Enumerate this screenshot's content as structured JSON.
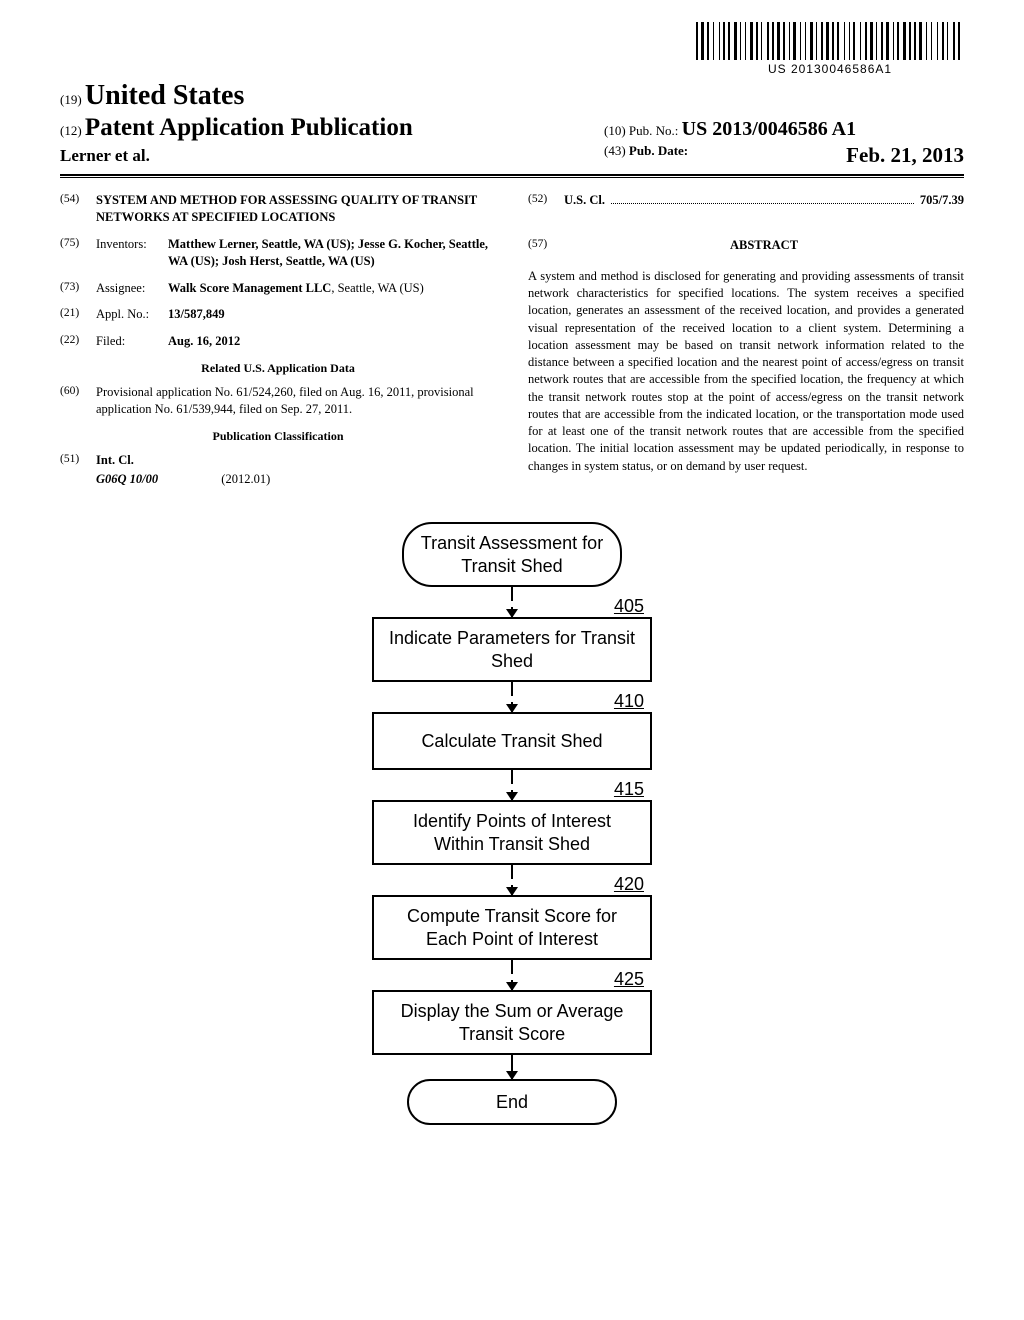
{
  "barcode": {
    "text": "US 20130046586A1",
    "bar_widths": [
      2,
      1,
      3,
      1,
      2,
      2,
      1,
      3,
      1,
      1,
      2,
      1,
      2,
      2,
      3,
      1,
      1,
      2,
      1,
      2,
      3,
      1,
      2,
      1,
      1,
      3,
      2,
      1,
      2,
      1,
      3,
      1,
      2,
      2,
      1,
      1,
      3,
      2,
      1,
      2,
      1,
      2,
      3,
      1,
      1,
      2,
      2,
      1,
      3,
      1,
      2,
      1,
      2,
      3,
      1,
      2,
      1,
      1,
      2,
      3,
      1,
      2,
      2,
      1,
      3,
      1,
      1,
      2,
      2,
      1,
      3,
      2,
      1,
      1,
      2,
      2,
      3,
      1,
      2,
      1,
      2,
      1,
      3,
      2,
      1,
      2,
      1,
      3,
      1,
      2,
      2,
      1,
      1,
      3,
      2,
      1,
      2,
      3
    ]
  },
  "header": {
    "country_code": "(19)",
    "country": "United States",
    "doc_type_code": "(12)",
    "doc_type": "Patent Application Publication",
    "authors_line": "Lerner et al.",
    "pub_no_code": "(10)",
    "pub_no_label": "Pub. No.:",
    "pub_no": "US 2013/0046586 A1",
    "pub_date_code": "(43)",
    "pub_date_label": "Pub. Date:",
    "pub_date": "Feb. 21, 2013"
  },
  "left_col": {
    "title_code": "(54)",
    "title": "SYSTEM AND METHOD FOR ASSESSING QUALITY OF TRANSIT NETWORKS AT SPECIFIED LOCATIONS",
    "inventors_code": "(75)",
    "inventors_label": "Inventors:",
    "inventors": "Matthew Lerner, Seattle, WA (US); Jesse G. Kocher, Seattle, WA (US); Josh Herst, Seattle, WA (US)",
    "assignee_code": "(73)",
    "assignee_label": "Assignee:",
    "assignee": "Walk Score Management LLC, Seattle, WA (US)",
    "appl_code": "(21)",
    "appl_label": "Appl. No.:",
    "appl_no": "13/587,849",
    "filed_code": "(22)",
    "filed_label": "Filed:",
    "filed": "Aug. 16, 2012",
    "related_heading": "Related U.S. Application Data",
    "provisional_code": "(60)",
    "provisional": "Provisional application No. 61/524,260, filed on Aug. 16, 2011, provisional application No. 61/539,944, filed on Sep. 27, 2011.",
    "pub_class_heading": "Publication Classification",
    "int_cl_code": "(51)",
    "int_cl_label": "Int. Cl.",
    "int_cl_class": "G06Q 10/00",
    "int_cl_date": "(2012.01)"
  },
  "right_col": {
    "us_cl_code": "(52)",
    "us_cl_label": "U.S. Cl.",
    "us_cl_val": "705/7.39",
    "abstract_code": "(57)",
    "abstract_heading": "ABSTRACT",
    "abstract": "A system and method is disclosed for generating and providing assessments of transit network characteristics for specified locations. The system receives a specified location, generates an assessment of the received location, and provides a generated visual representation of the received location to a client system. Determining a location assessment may be based on transit network information related to the distance between a specified location and the nearest point of access/egress on transit network routes that are accessible from the specified location, the frequency at which the transit network routes stop at the point of access/egress on the transit network routes that are accessible from the indicated location, or the transportation mode used for at least one of the transit network routes that are accessible from the specified location. The initial location assessment may be updated periodically, in response to changes in system status, or on demand by user request."
  },
  "flowchart": {
    "type": "flowchart",
    "font_family": "Arial",
    "node_border_color": "#000000",
    "node_border_width": 2,
    "background_color": "#ffffff",
    "node_font_size": 18,
    "label_font_size": 18,
    "terminal_width": 220,
    "process_width": 280,
    "nodes": [
      {
        "id": "start",
        "shape": "terminal",
        "text": "Transit Assessment for Transit Shed"
      },
      {
        "id": "n405",
        "shape": "process",
        "label": "405",
        "text": "Indicate Parameters for Transit Shed"
      },
      {
        "id": "n410",
        "shape": "process",
        "label": "410",
        "text": "Calculate Transit Shed"
      },
      {
        "id": "n415",
        "shape": "process",
        "label": "415",
        "text": "Identify Points of Interest Within Transit Shed"
      },
      {
        "id": "n420",
        "shape": "process",
        "label": "420",
        "text": "Compute Transit Score for Each Point of Interest"
      },
      {
        "id": "n425",
        "shape": "process",
        "label": "425",
        "text": "Display the Sum or Average Transit Score"
      },
      {
        "id": "end",
        "shape": "terminal",
        "text": "End"
      }
    ],
    "edges": [
      {
        "from": "start",
        "to": "n405"
      },
      {
        "from": "n405",
        "to": "n410"
      },
      {
        "from": "n410",
        "to": "n415"
      },
      {
        "from": "n415",
        "to": "n420"
      },
      {
        "from": "n420",
        "to": "n425"
      },
      {
        "from": "n425",
        "to": "end"
      }
    ]
  }
}
